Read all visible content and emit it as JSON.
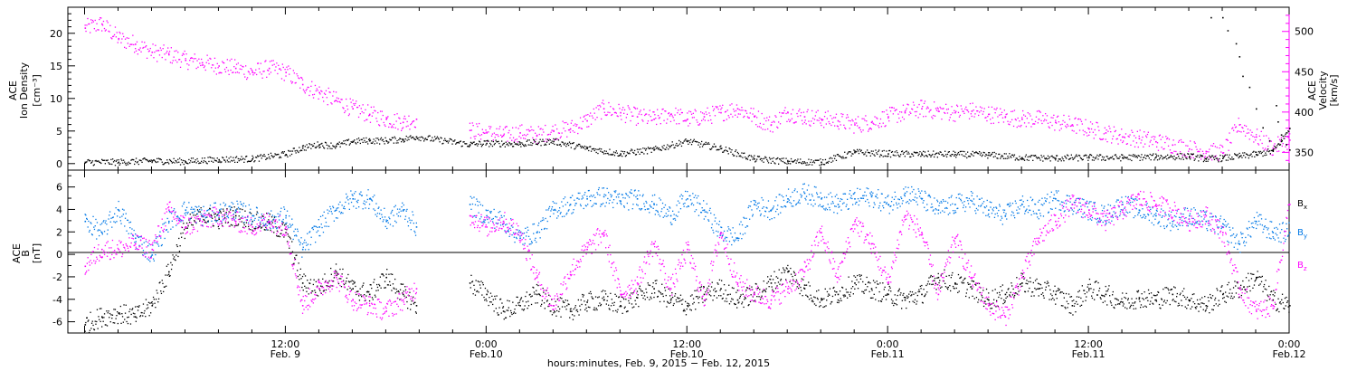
{
  "colors": {
    "axis": "#000000",
    "density": "#000000",
    "velocity": "#ff00ff",
    "bx": "#000000",
    "by": "#0078e6",
    "bz": "#ff00ff"
  },
  "chart_data": [
    {
      "type": "scatter",
      "panel": "top",
      "ylabel_left_lines": [
        "ACE",
        "Ion Density",
        "[cm⁻³]"
      ],
      "ylabel_right_lines": [
        "ACE",
        "Velocity",
        "[km/s]"
      ],
      "left_ylim": [
        -1,
        24
      ],
      "left_ticks": [
        0,
        5,
        10,
        15,
        20
      ],
      "left_tick_labels": [
        "0",
        "5",
        "10",
        "15",
        "20"
      ],
      "right_ylim": [
        328,
        530
      ],
      "right_ticks": [
        350,
        400,
        450,
        500
      ],
      "right_tick_labels": [
        "350",
        "400",
        "450",
        "500"
      ],
      "series": [
        {
          "axis": "left",
          "color_key": "density",
          "x": [
            0,
            2,
            4,
            6,
            8,
            10,
            12,
            13,
            14,
            15,
            16,
            17,
            18,
            19,
            19.8,
            23,
            24,
            26,
            28,
            30,
            32,
            34,
            36,
            38,
            40,
            42,
            44,
            46,
            48,
            50,
            52,
            54,
            56,
            58,
            60,
            62,
            64,
            66,
            67,
            68,
            69,
            70,
            71,
            71.5,
            72
          ],
          "y": [
            0.3,
            0.3,
            0.5,
            0.4,
            0.7,
            0.8,
            1.5,
            2.5,
            3.0,
            2.8,
            3.5,
            3.6,
            3.6,
            3.8,
            4.2,
            3.0,
            3.2,
            3.1,
            3.5,
            2.4,
            1.6,
            2.2,
            3.5,
            2.4,
            0.8,
            0.4,
            0.3,
            1.8,
            1.6,
            1.5,
            1.5,
            1.4,
            1.0,
            0.9,
            1.0,
            1.0,
            1.1,
            1.2,
            0.8,
            0.9,
            1.2,
            1.5,
            2.0,
            3.5,
            5.5
          ]
        },
        {
          "axis": "left",
          "color_key": "density",
          "x": [
            67.3,
            68.0,
            68.3,
            68.8,
            69.0,
            69.2,
            69.6,
            70.0,
            70.4,
            70.8,
            71.0,
            71.2,
            71.3,
            71.5,
            71.8,
            72.0
          ],
          "y": [
            22.5,
            22.5,
            20.5,
            18.5,
            16.5,
            13.5,
            11.8,
            8.5,
            5.6,
            3.6,
            2.2,
            9.0,
            6.5,
            4.5,
            3.0,
            2.2
          ]
        },
        {
          "axis": "right",
          "color_key": "velocity",
          "x": [
            0,
            1,
            2,
            3,
            4,
            5,
            6,
            7,
            8,
            9,
            10,
            11,
            12,
            13,
            14,
            15,
            16,
            17,
            18,
            19,
            19.8,
            21,
            22,
            23,
            24,
            25,
            26,
            27,
            28,
            29,
            30,
            31,
            32,
            33,
            34,
            35,
            36,
            37,
            38,
            39,
            40,
            41,
            42,
            43,
            44,
            45,
            46,
            47,
            48,
            49,
            50,
            51,
            52,
            53,
            54,
            55,
            56,
            57,
            58,
            59,
            60,
            61,
            62,
            63,
            64,
            65,
            66,
            67,
            68,
            69,
            70,
            71,
            72
          ],
          "y": [
            505,
            510,
            492,
            485,
            475,
            472,
            465,
            462,
            458,
            455,
            450,
            455,
            450,
            435,
            425,
            415,
            405,
            398,
            392,
            388,
            392,
            null,
            null,
            378,
            375,
            372,
            375,
            372,
            377,
            380,
            390,
            405,
            400,
            395,
            392,
            398,
            392,
            395,
            400,
            405,
            395,
            385,
            400,
            395,
            392,
            390,
            385,
            388,
            395,
            400,
            405,
            402,
            400,
            402,
            398,
            395,
            392,
            392,
            388,
            385,
            380,
            375,
            370,
            368,
            364,
            360,
            355,
            352,
            350,
            385,
            370,
            356,
            366
          ]
        }
      ]
    },
    {
      "type": "scatter",
      "panel": "bottom",
      "ylabel_left_lines": [
        "ACE",
        "B",
        "[nT]"
      ],
      "ylim": [
        -7,
        7.5
      ],
      "ticks": [
        -6,
        -4,
        -2,
        0,
        2,
        4,
        6
      ],
      "tick_labels": [
        "-6",
        "-4",
        "-2",
        "0",
        "2",
        "4",
        "6"
      ],
      "legend_position": "right",
      "legend": [
        {
          "label": "B",
          "sub": "x",
          "color_key": "bx"
        },
        {
          "label": "B",
          "sub": "y",
          "color_key": "by"
        },
        {
          "label": "B",
          "sub": "z",
          "color_key": "bz"
        }
      ],
      "series": [
        {
          "name": "Bx",
          "color_key": "bx",
          "x": [
            0,
            1,
            2,
            3,
            4,
            5,
            6,
            7,
            8,
            9,
            10,
            11,
            12,
            13,
            14,
            15,
            16,
            17,
            18,
            19,
            19.8,
            21,
            22,
            23,
            24,
            25,
            26,
            27,
            28,
            29,
            30,
            31,
            32,
            33,
            34,
            35,
            36,
            37,
            38,
            39,
            40,
            41,
            42,
            43,
            44,
            45,
            46,
            47,
            48,
            49,
            50,
            51,
            52,
            53,
            54,
            55,
            56,
            57,
            58,
            59,
            60,
            61,
            62,
            63,
            64,
            65,
            66,
            67,
            68,
            69,
            70,
            71,
            72
          ],
          "y": [
            -6.2,
            -5.5,
            -5.2,
            -5.5,
            -4.5,
            -1.5,
            2.5,
            3.5,
            3.2,
            3.5,
            3.0,
            2.8,
            2.0,
            -2.5,
            -3.0,
            -1.5,
            -3.0,
            -3.5,
            -2.0,
            -3.5,
            -4.5,
            null,
            null,
            -2.5,
            -3.5,
            -5.0,
            -4.5,
            -3.5,
            -4.5,
            -5.0,
            -4.2,
            -4.0,
            -4.5,
            -3.8,
            -3.0,
            -4.0,
            -4.5,
            -3.5,
            -3.0,
            -4.0,
            -3.5,
            -2.5,
            -1.5,
            -3.0,
            -4.0,
            -3.5,
            -2.5,
            -3.0,
            -3.5,
            -4.0,
            -3.5,
            -2.0,
            -2.5,
            -3.0,
            -4.0,
            -3.5,
            -2.5,
            -3.0,
            -3.5,
            -4.5,
            -3.0,
            -3.5,
            -4.2,
            -3.8,
            -4.0,
            -3.5,
            -4.0,
            -4.5,
            -3.5,
            -3.0,
            -2.0,
            -4.0,
            -4.5
          ]
        },
        {
          "name": "By",
          "color_key": "by",
          "x": [
            0,
            1,
            2,
            3,
            4,
            5,
            6,
            7,
            8,
            9,
            10,
            11,
            12,
            13,
            14,
            15,
            16,
            17,
            18,
            19,
            19.8,
            21,
            22,
            23,
            24,
            25,
            26,
            27,
            28,
            29,
            30,
            31,
            32,
            33,
            34,
            35,
            36,
            37,
            38,
            39,
            40,
            41,
            42,
            43,
            44,
            45,
            46,
            47,
            48,
            49,
            50,
            51,
            52,
            53,
            54,
            55,
            56,
            57,
            58,
            59,
            60,
            61,
            62,
            63,
            64,
            65,
            66,
            67,
            68,
            69,
            70,
            71,
            72
          ],
          "y": [
            3.0,
            2.0,
            4.0,
            1.5,
            0.0,
            3.0,
            4.0,
            3.5,
            3.8,
            4.0,
            3.5,
            3.0,
            3.5,
            0.5,
            2.5,
            4.0,
            5.0,
            5.0,
            3.0,
            4.0,
            2.5,
            null,
            null,
            4.5,
            3.5,
            3.0,
            1.5,
            2.0,
            4.0,
            4.5,
            5.0,
            5.2,
            4.8,
            5.0,
            4.5,
            3.5,
            5.0,
            4.0,
            2.0,
            1.5,
            4.5,
            4.0,
            5.0,
            5.5,
            5.0,
            4.5,
            5.0,
            5.2,
            4.5,
            5.5,
            5.0,
            4.0,
            4.5,
            4.8,
            4.0,
            3.5,
            4.5,
            4.0,
            5.0,
            4.5,
            4.0,
            3.5,
            4.5,
            4.0,
            3.5,
            3.0,
            3.5,
            3.0,
            2.5,
            1.0,
            3.0,
            2.0,
            2.0
          ]
        },
        {
          "name": "Bz",
          "color_key": "bz",
          "x": [
            0,
            1,
            2,
            3,
            4,
            5,
            6,
            7,
            8,
            9,
            10,
            11,
            12,
            13,
            14,
            15,
            16,
            17,
            18,
            19,
            19.8,
            21,
            22,
            23,
            24,
            25,
            26,
            27,
            28,
            29,
            30,
            31,
            32,
            33,
            34,
            35,
            36,
            37,
            38,
            39,
            40,
            41,
            42,
            43,
            44,
            45,
            46,
            47,
            48,
            49,
            50,
            51,
            52,
            53,
            54,
            55,
            56,
            57,
            58,
            59,
            60,
            61,
            62,
            63,
            64,
            65,
            66,
            67,
            68,
            69,
            70,
            71,
            72
          ],
          "y": [
            -1.0,
            0.5,
            0.5,
            1.0,
            0.5,
            4.0,
            2.5,
            3.0,
            3.5,
            3.0,
            2.5,
            3.0,
            2.5,
            -4.5,
            -3.0,
            -2.0,
            -4.0,
            -4.5,
            -5.0,
            -4.0,
            -3.0,
            null,
            null,
            3.5,
            2.5,
            3.0,
            2.0,
            -2.0,
            -4.5,
            -1.5,
            0.5,
            2.0,
            -3.5,
            -2.5,
            1.0,
            -3.0,
            0.5,
            -4.0,
            2.0,
            -2.5,
            -3.5,
            -4.0,
            -3.0,
            -1.5,
            2.0,
            -2.0,
            3.0,
            1.0,
            -2.5,
            3.5,
            2.0,
            -3.5,
            1.5,
            -2.0,
            -4.5,
            -5.5,
            -2.0,
            1.5,
            3.0,
            4.5,
            4.0,
            3.0,
            4.0,
            5.0,
            4.5,
            4.0,
            3.0,
            3.5,
            2.0,
            -3.0,
            -5.0,
            -4.5,
            4.5
          ]
        }
      ]
    }
  ],
  "x_axis": {
    "xlim": [
      -1,
      72
    ],
    "major_ticks": [
      {
        "x": 12,
        "label": "12:00",
        "date": "Feb. 9"
      },
      {
        "x": 24,
        "label": "0:00",
        "date": "Feb.10"
      },
      {
        "x": 36,
        "label": "12:00",
        "date": "Feb.10"
      },
      {
        "x": 48,
        "label": "0:00",
        "date": "Feb.11"
      },
      {
        "x": 60,
        "label": "12:00",
        "date": "Feb.11"
      },
      {
        "x": 72,
        "label": "0:00",
        "date": "Feb.12"
      }
    ],
    "xlabel": "hours:minutes, Feb.  9, 2015 − Feb. 12, 2015"
  }
}
